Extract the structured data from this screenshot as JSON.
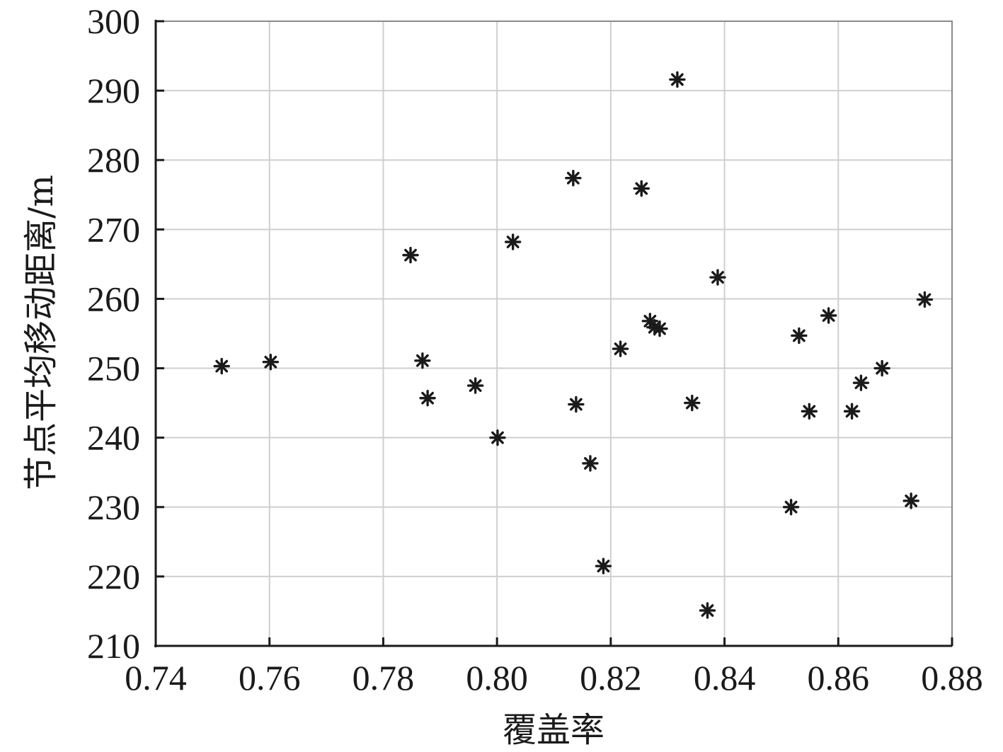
{
  "chart_data": {
    "type": "scatter",
    "xlabel": "覆盖率",
    "ylabel": "节点平均移动距离/m",
    "xlim": [
      0.74,
      0.88
    ],
    "ylim": [
      210,
      300
    ],
    "x_ticks": [
      0.74,
      0.76,
      0.78,
      0.8,
      0.82,
      0.84,
      0.86,
      0.88
    ],
    "x_tick_labels": [
      "0.74",
      "0.76",
      "0.78",
      "0.80",
      "0.82",
      "0.84",
      "0.86",
      "0.88"
    ],
    "y_ticks": [
      210,
      220,
      230,
      240,
      250,
      260,
      270,
      280,
      290,
      300
    ],
    "y_tick_labels": [
      "210",
      "220",
      "230",
      "240",
      "250",
      "260",
      "270",
      "280",
      "290",
      "300"
    ],
    "grid": true,
    "marker": "asterisk",
    "colors": {
      "marker": "#1a1a1a",
      "grid": "#cfcfcf",
      "axis": "#1a1a1a"
    },
    "points": [
      {
        "x": 0.7516,
        "y": 250.3
      },
      {
        "x": 0.7602,
        "y": 250.9
      },
      {
        "x": 0.7848,
        "y": 266.3
      },
      {
        "x": 0.7869,
        "y": 251.1
      },
      {
        "x": 0.7878,
        "y": 245.7
      },
      {
        "x": 0.7962,
        "y": 247.5
      },
      {
        "x": 0.8001,
        "y": 240.0
      },
      {
        "x": 0.8028,
        "y": 268.2
      },
      {
        "x": 0.8134,
        "y": 277.4
      },
      {
        "x": 0.8139,
        "y": 244.8
      },
      {
        "x": 0.8164,
        "y": 236.3
      },
      {
        "x": 0.8187,
        "y": 221.5
      },
      {
        "x": 0.8217,
        "y": 252.8
      },
      {
        "x": 0.8254,
        "y": 275.9
      },
      {
        "x": 0.8269,
        "y": 256.8
      },
      {
        "x": 0.8277,
        "y": 255.9
      },
      {
        "x": 0.8286,
        "y": 255.7
      },
      {
        "x": 0.8317,
        "y": 291.6
      },
      {
        "x": 0.8343,
        "y": 245.0
      },
      {
        "x": 0.837,
        "y": 215.1
      },
      {
        "x": 0.8388,
        "y": 263.1
      },
      {
        "x": 0.8517,
        "y": 230.0
      },
      {
        "x": 0.8531,
        "y": 254.7
      },
      {
        "x": 0.8549,
        "y": 243.8
      },
      {
        "x": 0.8583,
        "y": 257.6
      },
      {
        "x": 0.8624,
        "y": 243.8
      },
      {
        "x": 0.864,
        "y": 247.9
      },
      {
        "x": 0.8677,
        "y": 250.0
      },
      {
        "x": 0.8728,
        "y": 230.9
      },
      {
        "x": 0.8752,
        "y": 259.9
      }
    ]
  }
}
